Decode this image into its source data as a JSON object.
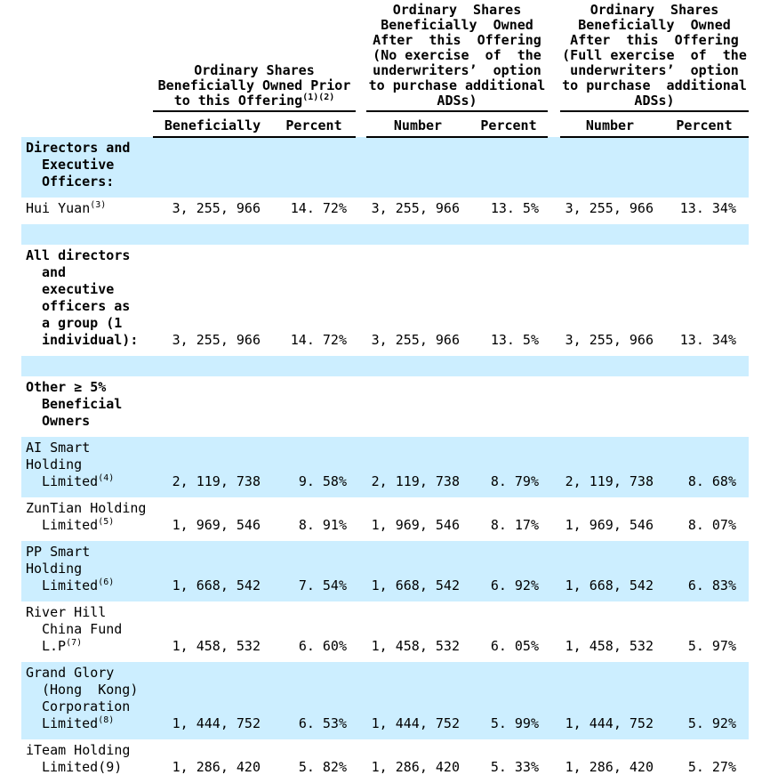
{
  "table": {
    "highlight_color": "#cceeff",
    "header": {
      "groups": [
        {
          "name": "prior-to-offering",
          "lines": [
            {
              "t": "Ordinary Shares"
            },
            {
              "t": "Beneficially Owned Prior"
            },
            {
              "t": "to this Offering",
              "s": "(1)(2)"
            }
          ]
        },
        {
          "name": "after-offering-no-exercise",
          "lines": [
            {
              "t": "Ordinary  Shares"
            },
            {
              "t": "Beneficially  Owned"
            },
            {
              "t": "After  this  Offering"
            },
            {
              "t": "(No exercise  of  the"
            },
            {
              "t": "underwriters’  option"
            },
            {
              "t": "to purchase additional"
            },
            {
              "t": "ADSs)"
            }
          ]
        },
        {
          "name": "after-offering-full-exercise",
          "lines": [
            {
              "t": "Ordinary  Shares"
            },
            {
              "t": "Beneficially  Owned"
            },
            {
              "t": "After  this  Offering"
            },
            {
              "t": "(Full exercise  of  the"
            },
            {
              "t": "underwriters’  option"
            },
            {
              "t": "to purchase  additional"
            },
            {
              "t": "ADSs)"
            }
          ]
        }
      ],
      "subheaders": [
        "Beneficially",
        "Percent",
        "Number",
        "Percent",
        "Number",
        "Percent"
      ]
    },
    "rows": [
      {
        "kind": "section",
        "bg": "highlight",
        "bold": true,
        "lines": [
          {
            "t": "Directors and"
          },
          {
            "t": "Executive",
            "i": 1
          },
          {
            "t": "Officers:",
            "i": 1
          }
        ]
      },
      {
        "kind": "data",
        "bg": "plain",
        "lines": [
          {
            "t": "Hui Yuan",
            "s": "(3)"
          }
        ],
        "cells": [
          "3, 255, 966",
          "14. 72%",
          "3, 255, 966",
          "13. 5%",
          "3, 255, 966",
          "13. 34%"
        ]
      },
      {
        "kind": "spacer",
        "bg": "highlight"
      },
      {
        "kind": "data",
        "bg": "plain",
        "bold": true,
        "lines": [
          {
            "t": "All directors"
          },
          {
            "t": "and",
            "i": 1
          },
          {
            "t": "executive",
            "i": 1
          },
          {
            "t": "officers as",
            "i": 1
          },
          {
            "t": "a group (1",
            "i": 1
          },
          {
            "t": "individual):",
            "i": 1
          }
        ],
        "cells": [
          "3, 255, 966",
          "14. 72%",
          "3, 255, 966",
          "13. 5%",
          "3, 255, 966",
          "13. 34%"
        ]
      },
      {
        "kind": "spacer",
        "bg": "highlight"
      },
      {
        "kind": "section",
        "bg": "plain",
        "bold": true,
        "lines": [
          {
            "t": "Other ≥ 5%"
          },
          {
            "t": "Beneficial",
            "i": 1
          },
          {
            "t": "Owners",
            "i": 1
          }
        ]
      },
      {
        "kind": "data",
        "bg": "highlight",
        "lines": [
          {
            "t": "AI Smart"
          },
          {
            "t": "Holding"
          },
          {
            "t": "Limited",
            "s": "(4)",
            "i": 1
          }
        ],
        "cells": [
          "2, 119, 738",
          "9. 58%",
          "2, 119, 738",
          "8. 79%",
          "2, 119, 738",
          "8. 68%"
        ]
      },
      {
        "kind": "data",
        "bg": "plain",
        "lines": [
          {
            "t": "ZunTian Holding"
          },
          {
            "t": "Limited",
            "s": "(5)",
            "i": 1
          }
        ],
        "cells": [
          "1, 969, 546",
          "8. 91%",
          "1, 969, 546",
          "8. 17%",
          "1, 969, 546",
          "8. 07%"
        ]
      },
      {
        "kind": "data",
        "bg": "highlight",
        "lines": [
          {
            "t": "PP Smart"
          },
          {
            "t": "Holding"
          },
          {
            "t": "Limited",
            "s": "(6)",
            "i": 1
          }
        ],
        "cells": [
          "1, 668, 542",
          "7. 54%",
          "1, 668, 542",
          "6. 92%",
          "1, 668, 542",
          "6. 83%"
        ]
      },
      {
        "kind": "data",
        "bg": "plain",
        "lines": [
          {
            "t": "River Hill"
          },
          {
            "t": "China Fund",
            "i": 1
          },
          {
            "t": "L.P",
            "s": "(7)",
            "i": 1
          }
        ],
        "cells": [
          "1, 458, 532",
          "6. 60%",
          "1, 458, 532",
          "6. 05%",
          "1, 458, 532",
          "5. 97%"
        ]
      },
      {
        "kind": "data",
        "bg": "highlight",
        "lines": [
          {
            "t": "Grand Glory"
          },
          {
            "t": "(Hong  Kong)",
            "i": 1
          },
          {
            "t": "Corporation",
            "i": 1
          },
          {
            "t": "Limited",
            "s": "(8)",
            "i": 1
          }
        ],
        "cells": [
          "1, 444, 752",
          "6. 53%",
          "1, 444, 752",
          "5. 99%",
          "1, 444, 752",
          "5. 92%"
        ]
      },
      {
        "kind": "data",
        "bg": "plain",
        "lines": [
          {
            "t": "iTeam Holding"
          },
          {
            "t": "Limited(9)",
            "i": 1
          }
        ],
        "cells": [
          "1, 286, 420",
          "5. 82%",
          "1, 286, 420",
          "5. 33%",
          "1, 286, 420",
          "5. 27%"
        ]
      }
    ]
  }
}
